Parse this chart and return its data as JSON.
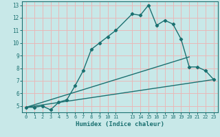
{
  "title": "",
  "xlabel": "Humidex (Indice chaleur)",
  "ylabel": "",
  "bg_color": "#c8e8e8",
  "grid_color": "#e8b8b8",
  "line_color": "#1a7070",
  "xlim": [
    -0.5,
    23.5
  ],
  "ylim": [
    4.5,
    13.3
  ],
  "xticks": [
    0,
    1,
    2,
    3,
    4,
    5,
    6,
    7,
    8,
    9,
    10,
    11,
    13,
    14,
    15,
    16,
    17,
    18,
    19,
    20,
    21,
    22,
    23
  ],
  "yticks": [
    5,
    6,
    7,
    8,
    9,
    10,
    11,
    12,
    13
  ],
  "line1_x": [
    0,
    1,
    2,
    3,
    4,
    5,
    6,
    7,
    8,
    9,
    10,
    11,
    13,
    14,
    15,
    16,
    17,
    18,
    19,
    20,
    21,
    22,
    23
  ],
  "line1_y": [
    4.9,
    4.9,
    5.0,
    4.7,
    5.3,
    5.5,
    6.6,
    7.8,
    9.5,
    10.0,
    10.5,
    11.0,
    12.3,
    12.2,
    13.0,
    11.4,
    11.8,
    11.5,
    10.3,
    8.1,
    8.1,
    7.8,
    7.1
  ],
  "line2_x": [
    0,
    23
  ],
  "line2_y": [
    4.9,
    7.1
  ],
  "line3_x": [
    0,
    20
  ],
  "line3_y": [
    4.9,
    8.9
  ],
  "marker": "D",
  "marker_size": 2.2,
  "line_width": 1.0,
  "tick_fontsize": 5.0,
  "xlabel_fontsize": 6.5
}
